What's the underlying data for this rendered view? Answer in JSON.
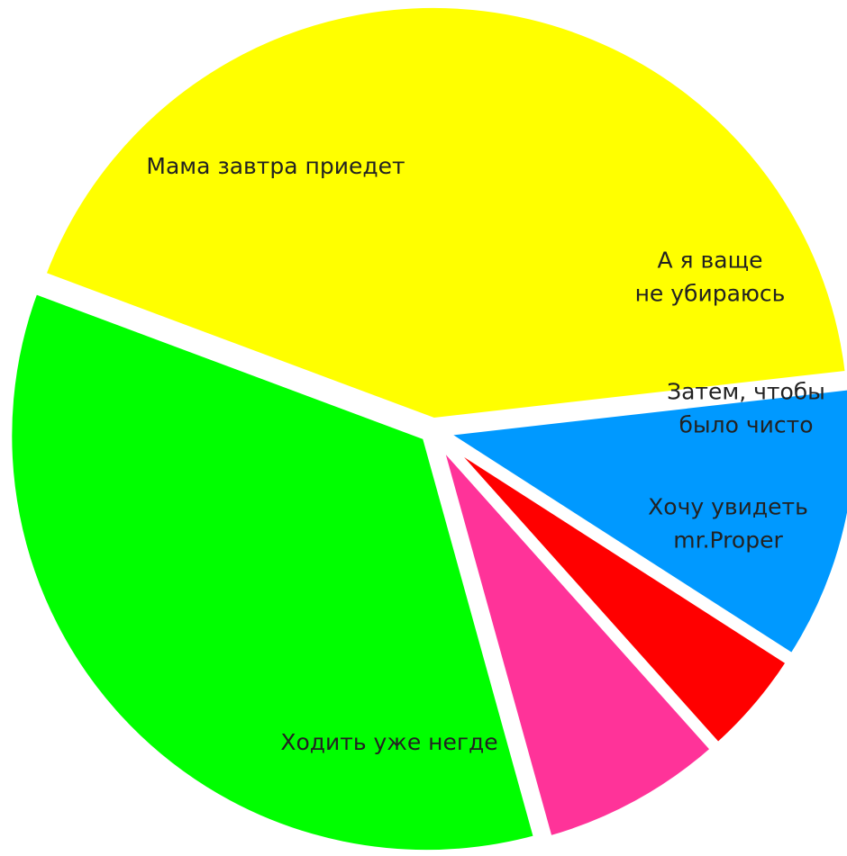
{
  "chart_data": {
    "type": "pie",
    "slices": [
      {
        "label_lines": [
          "А я ваще",
          "не убираюсь"
        ],
        "value": 10.9,
        "color": "#0099ff"
      },
      {
        "label_lines": [
          "Затем, чтобы",
          "было чисто"
        ],
        "value": 4.3,
        "color": "#ff0000"
      },
      {
        "label_lines": [
          "Хочу увидеть",
          "mr.Proper"
        ],
        "value": 7.3,
        "color": "#ff3399"
      },
      {
        "label_lines": [
          "Ходить уже негде"
        ],
        "value": 35.0,
        "color": "#00ff00"
      },
      {
        "label_lines": [
          "Мама завтра приедет"
        ],
        "value": 42.5,
        "color": "#ffff00"
      }
    ]
  }
}
